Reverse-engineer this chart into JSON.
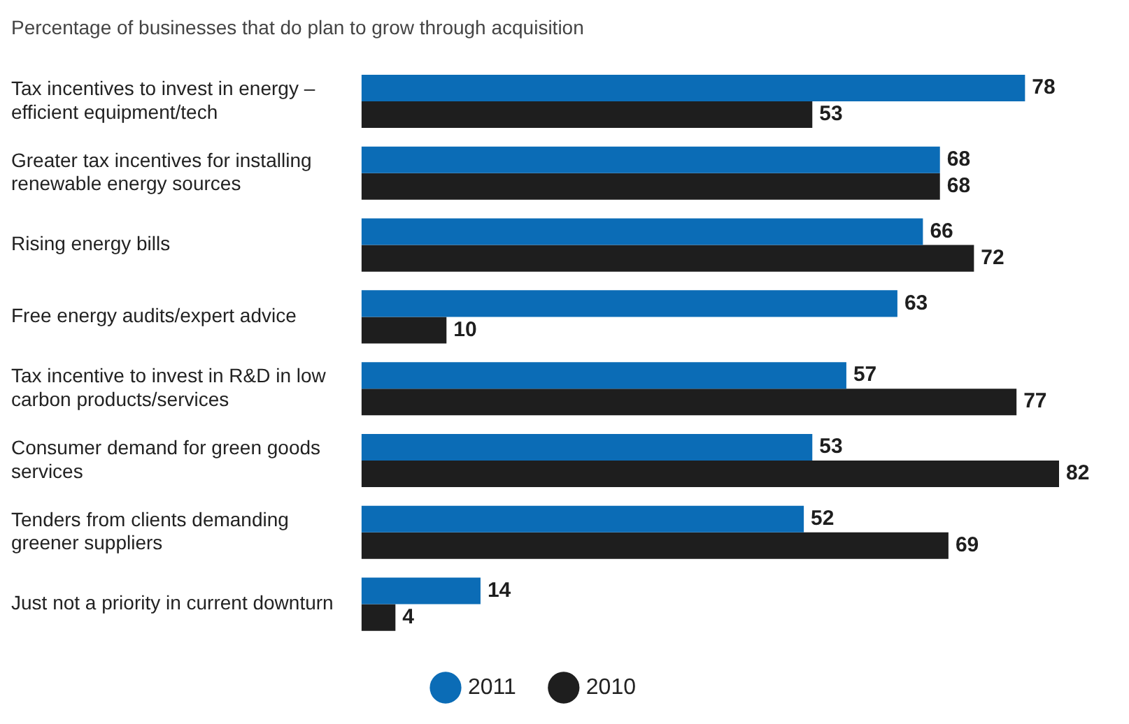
{
  "chart_data": {
    "type": "bar",
    "orientation": "horizontal",
    "title": "Percentage of businesses that do plan to grow through acquisition",
    "categories": [
      "Tax incentives to invest in energy – efficient equipment/tech",
      "Greater tax incentives for installing renewable energy sources",
      "Rising energy bills",
      "Free energy audits/expert advice",
      "Tax incentive to invest in R&D in low carbon products/services",
      "Consumer demand for green goods services",
      "Tenders from clients demanding greener suppliers",
      "Just not a priority in current downturn"
    ],
    "series": [
      {
        "name": "2011",
        "color": "#0b6cb6",
        "values": [
          78,
          68,
          66,
          63,
          57,
          53,
          52,
          14
        ]
      },
      {
        "name": "2010",
        "color": "#1e1e1e",
        "values": [
          53,
          68,
          72,
          10,
          77,
          82,
          69,
          4
        ]
      }
    ],
    "xlim": [
      0,
      82
    ],
    "data_labels": true,
    "legend": "bottom"
  }
}
